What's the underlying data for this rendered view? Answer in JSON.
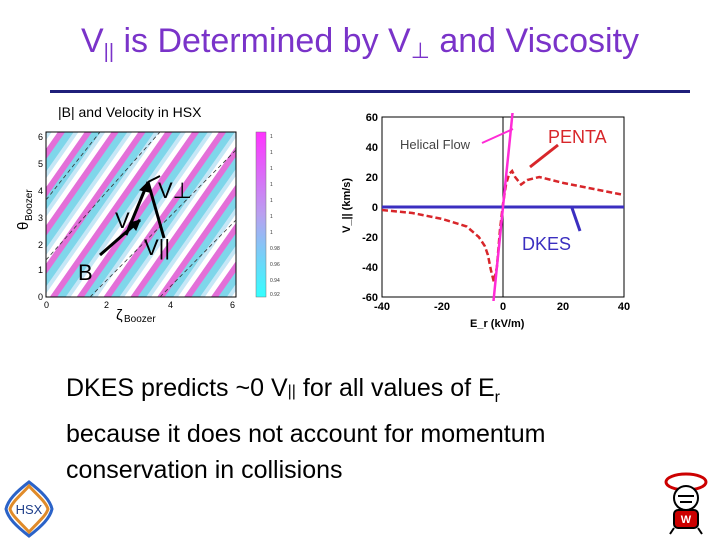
{
  "slide": {
    "title": "V┃┃ is Determined by V⊥ and Viscosity",
    "title_parts": {
      "v_par": "V",
      "par_sub": "||",
      "mid": " is Determined by ",
      "v_perp": "V",
      "perp_sub": "⊥",
      "end": " and Viscosity"
    },
    "accent_color": "#7a33c9",
    "rule_color": "#1f1f7a"
  },
  "left_figure": {
    "caption": "|B| and Velocity in HSX",
    "ylabel_main": "θ",
    "ylabel_sub": "Boozer",
    "xlabel_main": "ζ",
    "xlabel_sub": "Boozer",
    "y_ticks": [
      "6",
      "5",
      "4",
      "3",
      "2",
      "1",
      "0"
    ],
    "x_ticks": [
      "0",
      "2",
      "4",
      "6"
    ],
    "colorbar_ticks": [
      "1",
      "1",
      "1",
      "1",
      "1",
      "1",
      "1",
      "0.98",
      "0.96",
      "0.94",
      "0.92"
    ],
    "labels": {
      "b": "B",
      "v": "V",
      "v_perp": "V⊥",
      "v_par": "V||"
    }
  },
  "chart_data": {
    "type": "line",
    "xlabel": "E_r (kV/m)",
    "ylabel": "V_|| (km/s)",
    "xlim": [
      -40,
      40
    ],
    "ylim": [
      -60,
      60
    ],
    "x_ticks": [
      "-40",
      "-20",
      "0",
      "20",
      "40"
    ],
    "y_ticks": [
      "60",
      "40",
      "20",
      "0",
      "-20",
      "-40",
      "-60"
    ],
    "grid": false,
    "series": [
      {
        "name": "PENTA",
        "color": "#d8262a",
        "x": [
          -40,
          -30,
          -20,
          -12,
          -8,
          -6,
          -5,
          -4,
          -3,
          -2,
          -1,
          0,
          1,
          2,
          3,
          4,
          6,
          8,
          12,
          20,
          30,
          40
        ],
        "y": [
          -2,
          -4,
          -8,
          -13,
          -20,
          -26,
          -32,
          -42,
          -50,
          -40,
          -15,
          2,
          15,
          22,
          24,
          20,
          15,
          18,
          20,
          16,
          12,
          8
        ]
      },
      {
        "name": "DKES",
        "color": "#3b2fc0",
        "x": [
          -40,
          -20,
          0,
          20,
          40
        ],
        "y": [
          0,
          0,
          0,
          0,
          0
        ]
      },
      {
        "name": "Helical Flow",
        "color": "#ff2bd6",
        "x": [
          -4,
          -3,
          -2,
          -1,
          0,
          1,
          2,
          3,
          4
        ],
        "y": [
          -80,
          -60,
          -40,
          -20,
          0,
          20,
          40,
          60,
          80
        ]
      }
    ],
    "annotations": {
      "helical_flow": "Helical Flow",
      "penta": "PENTA",
      "dkes": "DKES"
    }
  },
  "body": {
    "line1_prefix": "DKES predicts ~0 V",
    "line1_sub": "||",
    "line1_mid": " for all values of E",
    "line1_sub2": "r",
    "line2": "because it does not account for momentum",
    "line3": "conservation in collisions"
  },
  "logos": {
    "hsx": "HSX",
    "hsx_icon": "hsx-logo-icon",
    "mascot_icon": "badger-mascot-icon"
  }
}
